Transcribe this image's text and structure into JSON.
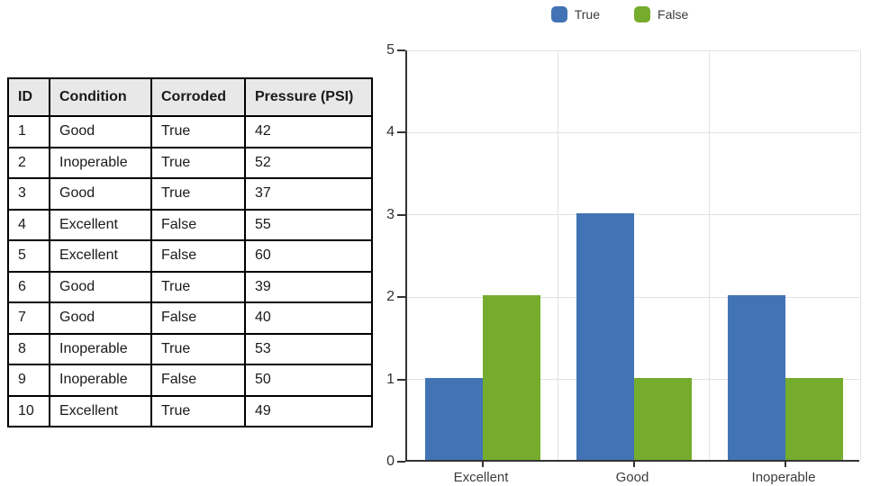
{
  "table": {
    "columns": [
      "ID",
      "Condition",
      "Corroded",
      "Pressure (PSI)"
    ],
    "rows": [
      [
        "1",
        "Good",
        "True",
        "42"
      ],
      [
        "2",
        "Inoperable",
        "True",
        "52"
      ],
      [
        "3",
        "Good",
        "True",
        "37"
      ],
      [
        "4",
        "Excellent",
        "False",
        "55"
      ],
      [
        "5",
        "Excellent",
        "False",
        "60"
      ],
      [
        "6",
        "Good",
        "True",
        "39"
      ],
      [
        "7",
        "Good",
        "False",
        "40"
      ],
      [
        "8",
        "Inoperable",
        "True",
        "53"
      ],
      [
        "9",
        "Inoperable",
        "False",
        "50"
      ],
      [
        "10",
        "Excellent",
        "True",
        "49"
      ]
    ]
  },
  "chart_data": {
    "type": "bar",
    "title": "",
    "xlabel": "",
    "ylabel": "",
    "categories": [
      "Excellent",
      "Good",
      "Inoperable"
    ],
    "series": [
      {
        "name": "True",
        "color": "#4273B4",
        "values": [
          1,
          3,
          2
        ]
      },
      {
        "name": "False",
        "color": "#76AC2E",
        "values": [
          2,
          1,
          1
        ]
      }
    ],
    "ylim": [
      0,
      5
    ],
    "ytick_step": 1,
    "yticks": [
      0,
      1,
      2,
      3,
      4,
      5
    ],
    "grid": true,
    "legend_position": "top"
  },
  "colors": {
    "axis": "#333333",
    "gridline": "#e2e2e2",
    "table_header_bg": "#e8e8e8",
    "table_border": "#000000",
    "series_true": "#4273B4",
    "series_false": "#76AC2E"
  }
}
